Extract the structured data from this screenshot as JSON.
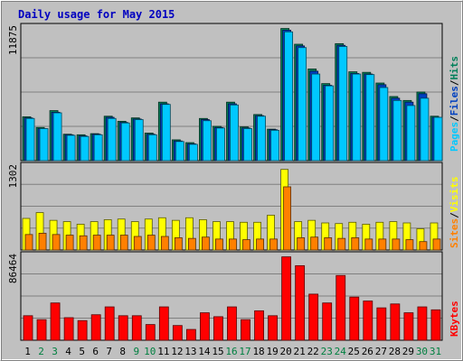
{
  "title": "Daily usage for May 2015",
  "colors": {
    "background": "#c0c0c0",
    "panel": "#c0c0c0",
    "gridline": "#808080",
    "title": "#0000c0",
    "pages": "#00c8ff",
    "files": "#0040c0",
    "hits": "#00805a",
    "visits": "#ffff00",
    "sites": "#ff8000",
    "kbytes": "#ff0000",
    "weekend_day": "#008040",
    "weekday": "#000000"
  },
  "chart_data": [
    {
      "type": "bar",
      "panel": "hits-files-pages",
      "ymax_label": "11875",
      "ymax": 11875,
      "right_labels": [
        "Pages",
        "Files",
        "Hits"
      ],
      "categories": [
        "1",
        "2",
        "3",
        "4",
        "5",
        "6",
        "7",
        "8",
        "9",
        "10",
        "11",
        "12",
        "13",
        "14",
        "15",
        "16",
        "17",
        "18",
        "19",
        "20",
        "21",
        "22",
        "23",
        "24",
        "25",
        "26",
        "27",
        "28",
        "29",
        "30",
        "31"
      ],
      "weekend_days": [
        "2",
        "3",
        "9",
        "10",
        "16",
        "17",
        "23",
        "24",
        "30",
        "31"
      ],
      "series": [
        {
          "name": "Hits",
          "values": [
            3900,
            2950,
            4450,
            2350,
            2300,
            2400,
            3950,
            3500,
            3800,
            2450,
            5200,
            1850,
            1600,
            3750,
            3050,
            5200,
            3000,
            4100,
            2800,
            11750,
            10350,
            8150,
            6850,
            10400,
            7900,
            7850,
            6900,
            5700,
            5350,
            6100,
            3950
          ]
        },
        {
          "name": "Files",
          "values": [
            3800,
            2850,
            4300,
            2300,
            2200,
            2350,
            3850,
            3400,
            3700,
            2350,
            5050,
            1750,
            1500,
            3650,
            2950,
            5050,
            2900,
            4000,
            2750,
            11600,
            10200,
            7950,
            6700,
            10250,
            7750,
            7700,
            6750,
            5550,
            5200,
            5950,
            3850
          ]
        },
        {
          "name": "Pages",
          "values": [
            3750,
            2850,
            4250,
            2250,
            2150,
            2300,
            3750,
            3350,
            3650,
            2300,
            5000,
            1700,
            1450,
            3550,
            2900,
            4950,
            2850,
            3950,
            2700,
            11450,
            10050,
            7700,
            6650,
            10150,
            7700,
            7650,
            6500,
            5350,
            4900,
            5550,
            3850
          ]
        }
      ]
    },
    {
      "type": "bar",
      "panel": "visits-sites",
      "ymax_label": "1302",
      "ymax": 1302,
      "right_labels": [
        "Sites",
        "Visits"
      ],
      "categories": [
        "1",
        "2",
        "3",
        "4",
        "5",
        "6",
        "7",
        "8",
        "9",
        "10",
        "11",
        "12",
        "13",
        "14",
        "15",
        "16",
        "17",
        "18",
        "19",
        "20",
        "21",
        "22",
        "23",
        "24",
        "25",
        "26",
        "27",
        "28",
        "29",
        "30",
        "31"
      ],
      "series": [
        {
          "name": "Visits",
          "values": [
            490,
            580,
            460,
            440,
            400,
            440,
            470,
            480,
            440,
            480,
            500,
            460,
            500,
            470,
            440,
            440,
            430,
            430,
            540,
            1250,
            440,
            460,
            420,
            410,
            430,
            400,
            430,
            440,
            420,
            330,
            420
          ]
        },
        {
          "name": "Sites",
          "values": [
            240,
            260,
            240,
            230,
            220,
            230,
            230,
            230,
            210,
            230,
            210,
            190,
            180,
            200,
            170,
            170,
            160,
            170,
            170,
            980,
            190,
            200,
            190,
            180,
            190,
            170,
            170,
            170,
            160,
            130,
            170
          ]
        }
      ]
    },
    {
      "type": "bar",
      "panel": "kbytes",
      "ymax_label": "86464",
      "ymax": 86464,
      "right_labels": [
        "KBytes"
      ],
      "categories": [
        "1",
        "2",
        "3",
        "4",
        "5",
        "6",
        "7",
        "8",
        "9",
        "10",
        "11",
        "12",
        "13",
        "14",
        "15",
        "16",
        "17",
        "18",
        "19",
        "20",
        "21",
        "22",
        "23",
        "24",
        "25",
        "26",
        "27",
        "28",
        "29",
        "30",
        "31"
      ],
      "series": [
        {
          "name": "KBytes",
          "values": [
            25000,
            21000,
            38000,
            23000,
            20000,
            26000,
            34000,
            25000,
            25000,
            16000,
            34000,
            15000,
            11000,
            28000,
            24000,
            34000,
            21000,
            30000,
            25000,
            85000,
            76000,
            47000,
            38000,
            66000,
            44000,
            40000,
            33000,
            37000,
            28000,
            34000,
            31000
          ]
        }
      ]
    }
  ]
}
